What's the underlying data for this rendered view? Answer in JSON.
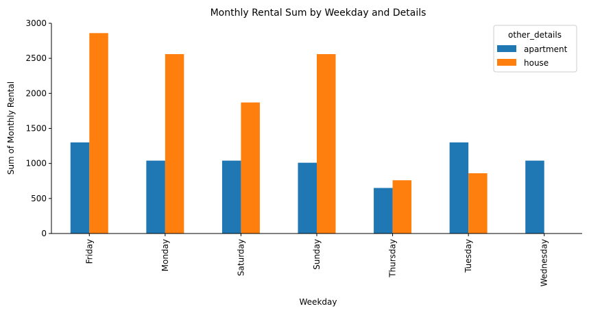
{
  "chart_data": {
    "type": "bar",
    "title": "Monthly Rental Sum by Weekday and Details",
    "xlabel": "Weekday",
    "ylabel": "Sum of Monthly Rental",
    "categories": [
      "Friday",
      "Monday",
      "Saturday",
      "Sunday",
      "Thursday",
      "Tuesday",
      "Wednesday"
    ],
    "series": [
      {
        "name": "apartment",
        "color": "#1f77b4",
        "values": [
          1300,
          1040,
          1040,
          1010,
          650,
          1300,
          1040
        ]
      },
      {
        "name": "house",
        "color": "#ff7f0e",
        "values": [
          2860,
          2560,
          1870,
          2560,
          760,
          860,
          0
        ]
      }
    ],
    "ylim": [
      0,
      3000
    ],
    "yticks": [
      0,
      500,
      1000,
      1500,
      2000,
      2500,
      3000
    ],
    "ytick_labels": [
      "0",
      "500",
      "1000",
      "1500",
      "2000",
      "2500",
      "3000"
    ],
    "grid": false,
    "legend": {
      "title": "other_details",
      "position": "top-right"
    }
  }
}
